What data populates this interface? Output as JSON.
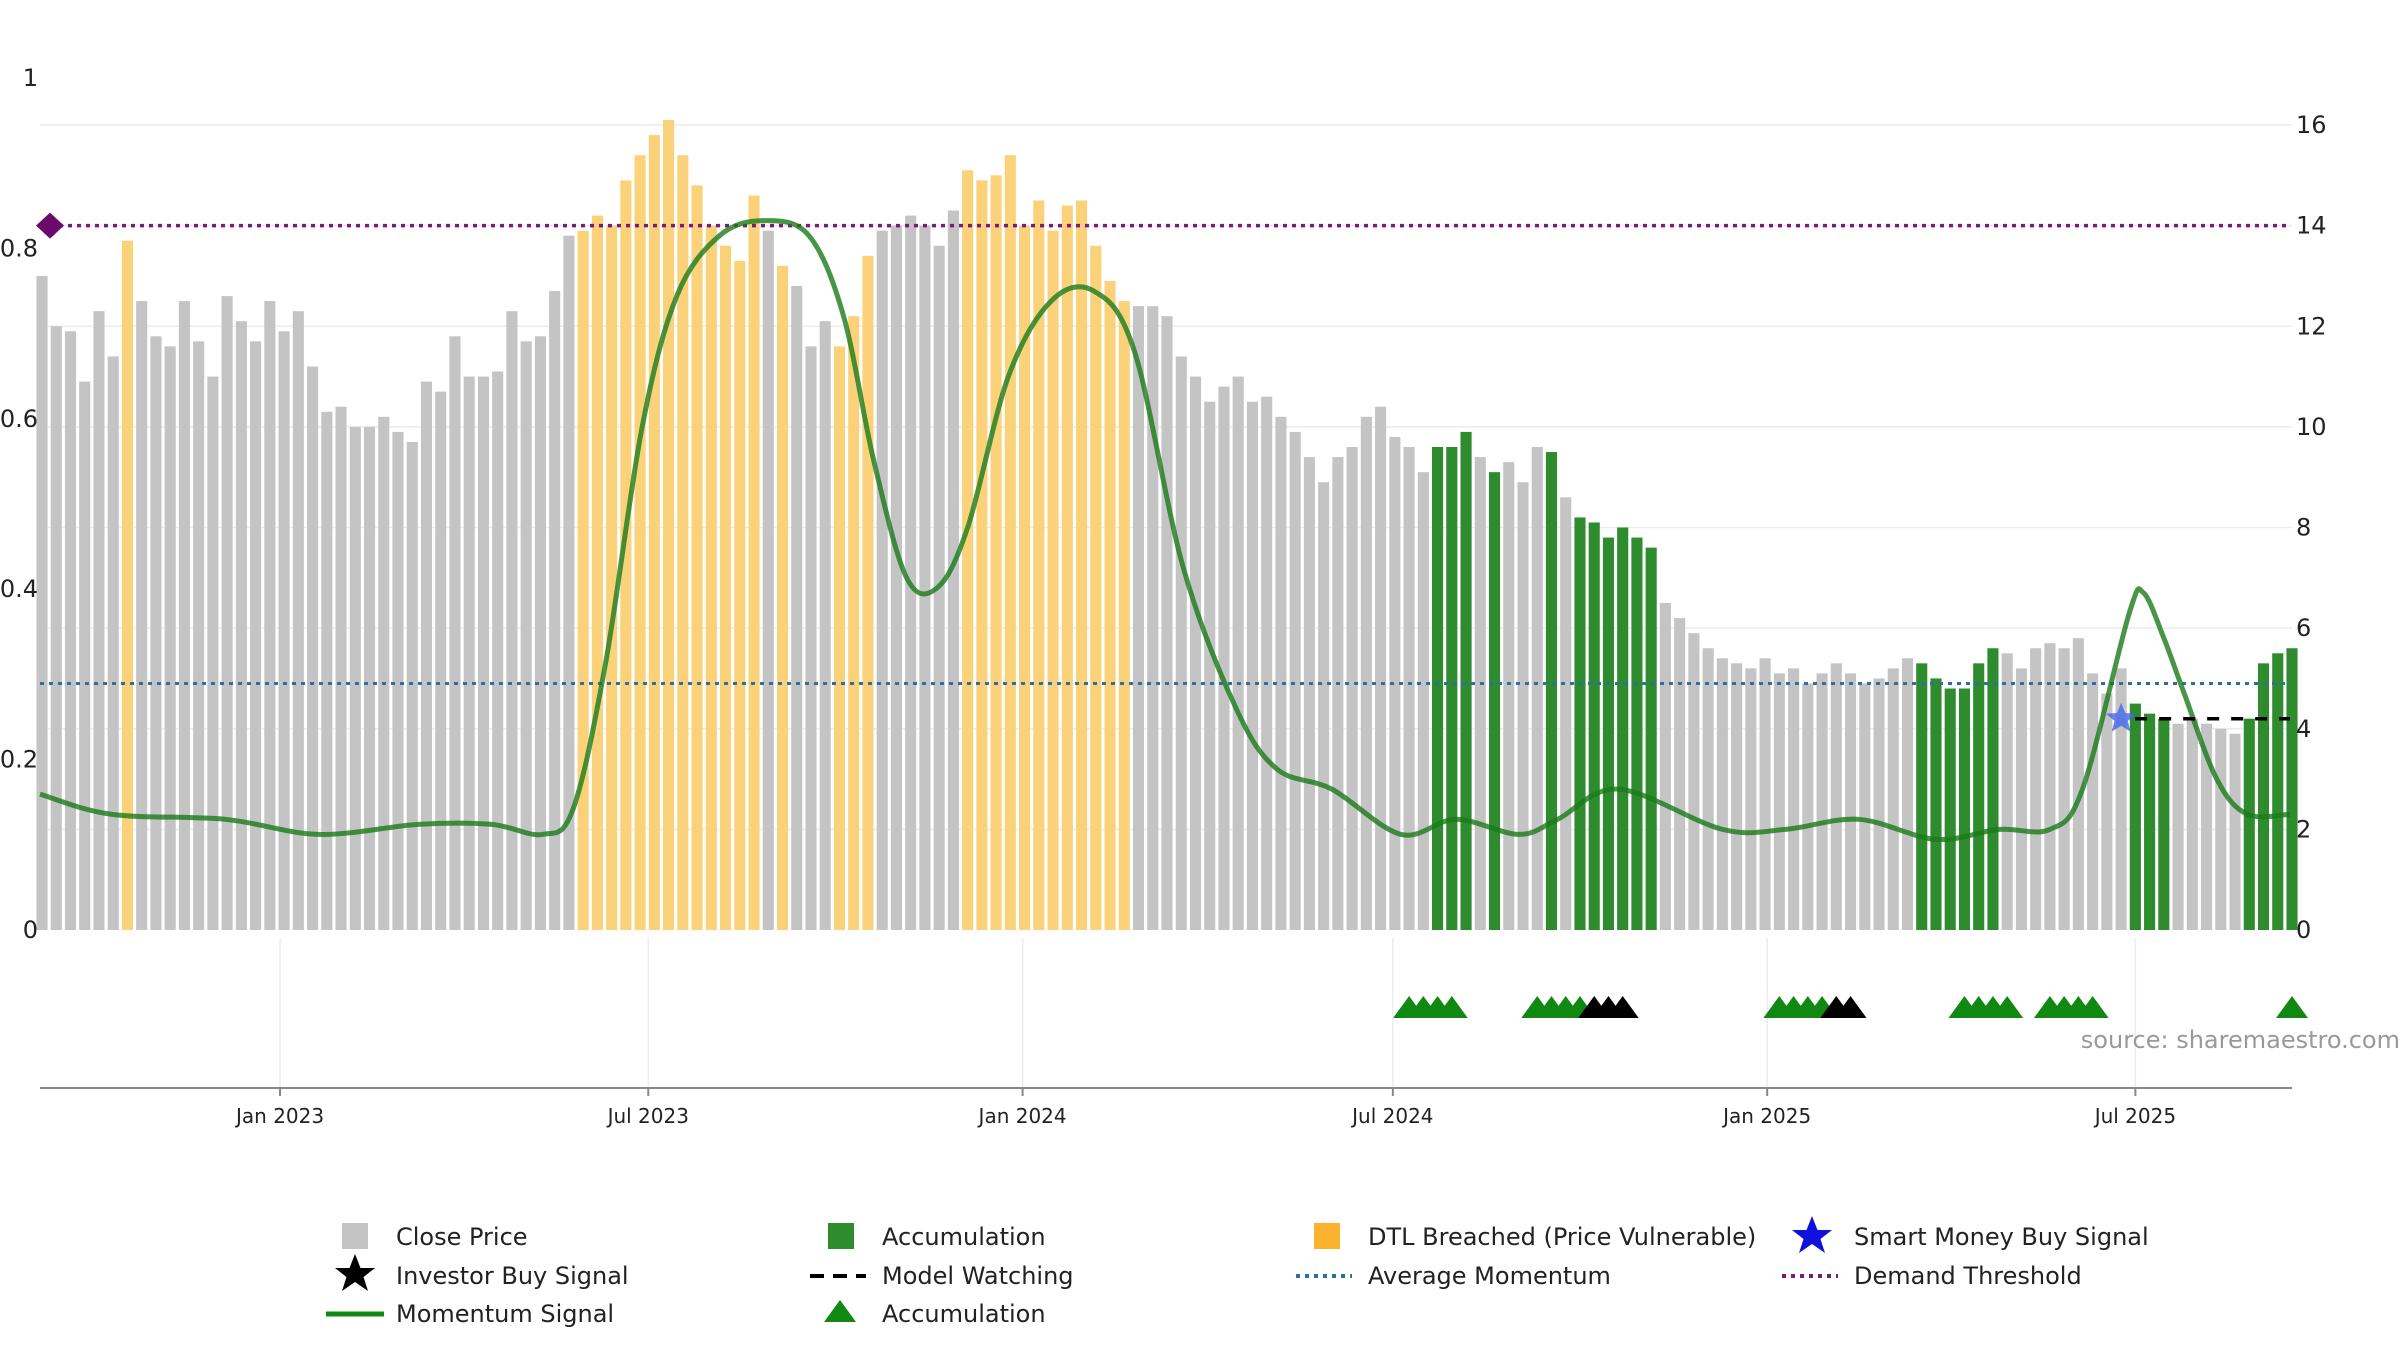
{
  "source": "source: sharemaestro.com",
  "colors": {
    "close_price": "#c4c4c4",
    "accumulation": "#2e8b2e",
    "dtl": "#fbd27a",
    "momentum": "#1a7a1a",
    "average_momentum": "#2e6fa0",
    "demand_threshold": "#7a1a7a",
    "smart_money": "#2222dd",
    "investor_buy": "#000000",
    "model_watching": "#000000",
    "accum_triangle": "#118811"
  },
  "legend": [
    {
      "label": "Close Price",
      "icon": "grey-square-icon"
    },
    {
      "label": "Accumulation",
      "icon": "green-square-icon"
    },
    {
      "label": "DTL Breached (Price Vulnerable)",
      "icon": "orange-square-icon"
    },
    {
      "label": "Smart Money Buy Signal",
      "icon": "blue-star-icon"
    },
    {
      "label": "Investor Buy Signal",
      "icon": "black-star-icon"
    },
    {
      "label": "Model Watching",
      "icon": "black-dashed-line-icon"
    },
    {
      "label": "Average Momentum",
      "icon": "blue-dotted-line-icon"
    },
    {
      "label": "Demand Threshold",
      "icon": "purple-dotted-line-icon"
    },
    {
      "label": "Momentum Signal",
      "icon": "green-line-icon"
    },
    {
      "label": "Accumulation",
      "icon": "green-triangle-icon"
    }
  ],
  "chart_data": {
    "type": "bar",
    "x_axis": {
      "ticks": [
        "Jan 2023",
        "Jul 2023",
        "Jan 2024",
        "Jul 2024",
        "Jan 2025",
        "Jul 2025"
      ],
      "range": [
        "2022-09-05",
        "2025-09-15"
      ]
    },
    "y_left": {
      "ticks": [
        "0",
        "0.2",
        "0.4",
        "0.6",
        "0.8",
        "1"
      ],
      "range": [
        0,
        1
      ]
    },
    "y_right": {
      "ticks": [
        "0",
        "2",
        "4",
        "6",
        "8",
        "10",
        "12",
        "14",
        "16"
      ],
      "range": [
        0,
        16
      ]
    },
    "grid": true,
    "legend_position": "bottom",
    "close_price": {
      "start": "2022-09-05",
      "interval_days": 7,
      "values": [
        13.0,
        12.0,
        11.9,
        10.9,
        12.3,
        11.4,
        13.7,
        12.5,
        11.8,
        11.6,
        12.5,
        11.7,
        11.0,
        12.6,
        12.1,
        11.7,
        12.5,
        11.9,
        12.3,
        11.2,
        10.3,
        10.4,
        10.0,
        10.0,
        10.2,
        9.9,
        9.7,
        10.9,
        10.7,
        11.8,
        11.0,
        11.0,
        11.1,
        12.3,
        11.7,
        11.8,
        12.7,
        13.8,
        13.9,
        14.2,
        14.0,
        14.9,
        15.4,
        15.8,
        16.1,
        15.4,
        14.8,
        14.0,
        13.6,
        13.3,
        14.6,
        13.9,
        13.2,
        12.8,
        11.6,
        12.1,
        11.6,
        12.2,
        13.4,
        13.9,
        14.0,
        14.2,
        14.0,
        13.6,
        14.3,
        15.1,
        14.9,
        15.0,
        15.4,
        14.0,
        14.5,
        13.9,
        14.4,
        14.5,
        13.6,
        12.9,
        12.5,
        12.4,
        12.4,
        12.2,
        11.4,
        11.0,
        10.5,
        10.8,
        11.0,
        10.5,
        10.6,
        10.2,
        9.9,
        9.4,
        8.9,
        9.4,
        9.6,
        10.2,
        10.4,
        9.8,
        9.6,
        9.1,
        9.6,
        9.6,
        9.9,
        9.4,
        9.1,
        9.3,
        8.9,
        9.6,
        9.5,
        8.6,
        8.2,
        8.1,
        7.8,
        8.0,
        7.8,
        7.6,
        6.5,
        6.2,
        5.9,
        5.6,
        5.4,
        5.3,
        5.2,
        5.4,
        5.1,
        5.2,
        4.9,
        5.1,
        5.3,
        5.1,
        4.9,
        5.0,
        5.2,
        5.4,
        5.3,
        5.0,
        4.8,
        4.8,
        5.3,
        5.6,
        5.5,
        5.2,
        5.6,
        5.7,
        5.6,
        5.8,
        5.1,
        4.7,
        5.2,
        4.5,
        4.3,
        4.2,
        4.1,
        4.2,
        4.1,
        4.0,
        3.9,
        4.2,
        5.3,
        5.5,
        5.6
      ],
      "bar_category": "GGGGGGDGGGGGGGGGGGGGGGGGGGGGGGGGGGGGGGDDDDDDDDDDDDDGDGGGDDDGGGGGGDDDDDDDDDDDDGGGGGGGGGGGGGGGGGGGGGAAAGAGGGAGAAAAAAGGGGGGGGGGGGGGGGGGAAAAAAGGGGGGGGGAAAGGGGGAAAAGGGGGGGGGGGGGGA"
    },
    "momentum_signal": {
      "points": [
        [
          "2022-09-05",
          2.7
        ],
        [
          "2022-10-10",
          2.3
        ],
        [
          "2022-12-05",
          2.2
        ],
        [
          "2023-01-20",
          1.9
        ],
        [
          "2023-03-10",
          2.1
        ],
        [
          "2023-04-15",
          2.1
        ],
        [
          "2023-05-10",
          1.9
        ],
        [
          "2023-05-25",
          2.4
        ],
        [
          "2023-06-10",
          5.3
        ],
        [
          "2023-06-28",
          10.0
        ],
        [
          "2023-07-15",
          12.6
        ],
        [
          "2023-08-05",
          13.8
        ],
        [
          "2023-08-27",
          14.1
        ],
        [
          "2023-09-18",
          13.8
        ],
        [
          "2023-10-05",
          12.2
        ],
        [
          "2023-10-20",
          9.3
        ],
        [
          "2023-11-05",
          7.0
        ],
        [
          "2023-11-20",
          6.8
        ],
        [
          "2023-12-05",
          8.0
        ],
        [
          "2023-12-25",
          11.0
        ],
        [
          "2024-01-15",
          12.5
        ],
        [
          "2024-02-05",
          12.7
        ],
        [
          "2024-02-25",
          11.5
        ],
        [
          "2024-03-20",
          7.2
        ],
        [
          "2024-04-15",
          4.4
        ],
        [
          "2024-05-05",
          3.2
        ],
        [
          "2024-06-01",
          2.8
        ],
        [
          "2024-07-05",
          1.9
        ],
        [
          "2024-08-01",
          2.2
        ],
        [
          "2024-09-01",
          1.9
        ],
        [
          "2024-09-20",
          2.2
        ],
        [
          "2024-10-20",
          2.8
        ],
        [
          "2024-12-10",
          2.0
        ],
        [
          "2025-01-10",
          2.0
        ],
        [
          "2025-02-15",
          2.2
        ],
        [
          "2025-03-25",
          1.8
        ],
        [
          "2025-04-25",
          2.0
        ],
        [
          "2025-05-20",
          2.0
        ],
        [
          "2025-06-05",
          2.8
        ],
        [
          "2025-06-28",
          6.3
        ],
        [
          "2025-07-05",
          6.7
        ],
        [
          "2025-07-15",
          5.8
        ],
        [
          "2025-07-25",
          4.7
        ],
        [
          "2025-08-10",
          3.0
        ],
        [
          "2025-08-25",
          2.3
        ],
        [
          "2025-09-15",
          2.3
        ]
      ]
    },
    "average_momentum": 4.9,
    "demand_threshold": 14.0,
    "demand_threshold_marker": "diamond",
    "smart_money_buy_signal": [
      [
        "2025-06-24",
        4.2
      ]
    ],
    "model_watching": {
      "from": "2025-06-24",
      "to": "2025-09-15",
      "value": 4.2
    },
    "accumulation_triangles": [
      "2024-07-08",
      "2024-07-15",
      "2024-07-22",
      "2024-07-29",
      "2024-09-09",
      "2024-09-16",
      "2024-09-23",
      "2024-09-30",
      "2025-01-06",
      "2025-01-13",
      "2025-01-20",
      "2025-01-27",
      "2025-04-07",
      "2025-04-14",
      "2025-04-21",
      "2025-04-28",
      "2025-05-19",
      "2025-05-26",
      "2025-06-02",
      "2025-06-09",
      "2025-09-15"
    ],
    "investor_buy_triangles": [
      "2024-10-07",
      "2024-10-14",
      "2024-10-21",
      "2025-02-03",
      "2025-02-10"
    ]
  }
}
